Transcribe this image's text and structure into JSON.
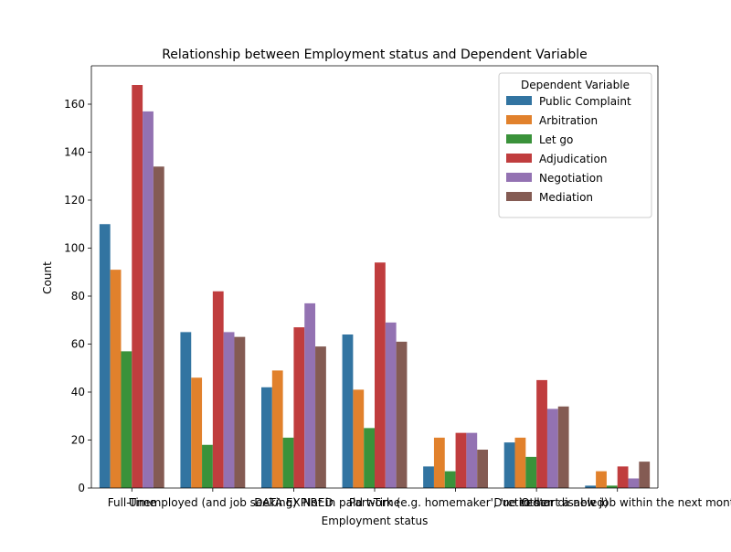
{
  "chart_data": {
    "type": "bar",
    "title": "Relationship between Employment status and Dependent Variable",
    "xlabel": "Employment status",
    "ylabel": "Count",
    "ylim": [
      0,
      176
    ],
    "yticks": [
      0,
      20,
      40,
      60,
      80,
      100,
      120,
      140,
      160
    ],
    "grid": false,
    "categories": [
      "Full-Time",
      "Unemployed (and job seeking)",
      "DATA EXPIRED",
      "Part-Time",
      "Not in paid work (e.g. homemaker', 'retired or disabled)",
      "Other",
      "Due to start a new job within the next month"
    ],
    "legend": {
      "title": "Dependent Variable",
      "position": "top-right"
    },
    "series": [
      {
        "name": "Public Complaint",
        "color": "#3274a1",
        "values": [
          110,
          65,
          42,
          64,
          9,
          19,
          1
        ]
      },
      {
        "name": "Arbitration",
        "color": "#e1812c",
        "values": [
          91,
          46,
          49,
          41,
          21,
          21,
          7
        ]
      },
      {
        "name": "Let go",
        "color": "#3a923a",
        "values": [
          57,
          18,
          21,
          25,
          7,
          13,
          1
        ]
      },
      {
        "name": "Adjudication",
        "color": "#c03d3e",
        "values": [
          168,
          82,
          67,
          94,
          23,
          45,
          9
        ]
      },
      {
        "name": "Negotiation",
        "color": "#9372b2",
        "values": [
          157,
          65,
          77,
          69,
          23,
          33,
          4
        ]
      },
      {
        "name": "Mediation",
        "color": "#845b53",
        "values": [
          134,
          63,
          59,
          61,
          16,
          34,
          11
        ]
      }
    ]
  }
}
